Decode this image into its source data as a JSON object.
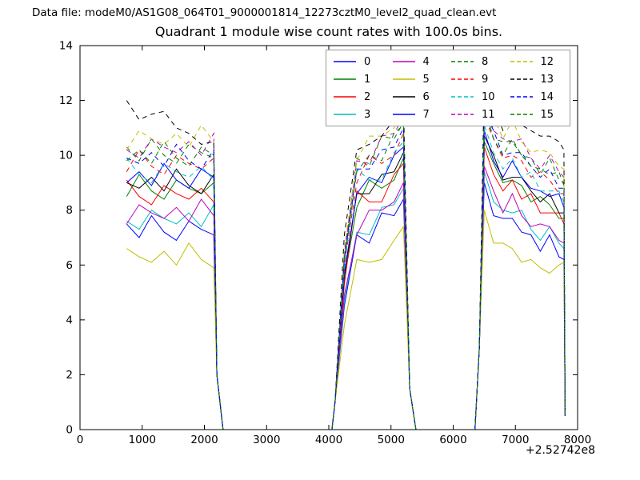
{
  "header": {
    "data_file_label": "Data file: modeM0/AS1G08_064T01_9000001814_12273cztM0_level2_quad_clean.evt"
  },
  "chart_data": {
    "type": "line",
    "title": "Quadrant 1 module wise count rates with 100.0s bins.",
    "xlabel": "",
    "ylabel": "",
    "x_offset_label": "+2.52742e8",
    "xlim": [
      0,
      8000
    ],
    "ylim": [
      0,
      14
    ],
    "xticks": [
      0,
      1000,
      2000,
      3000,
      4000,
      5000,
      6000,
      7000,
      8000
    ],
    "yticks": [
      0,
      2,
      4,
      6,
      8,
      10,
      12,
      14
    ],
    "grid": false,
    "legend": {
      "position": "upper center-right",
      "columns": 4
    },
    "x": [
      750,
      950,
      1150,
      1350,
      1550,
      1750,
      1950,
      2150,
      2200,
      2300,
      4050,
      4100,
      4250,
      4450,
      4650,
      4850,
      5050,
      5200,
      5300,
      5400,
      6350,
      6420,
      6500,
      6650,
      6800,
      6950,
      7100,
      7250,
      7400,
      7550,
      7700,
      7780,
      7800
    ],
    "series": [
      {
        "name": "0",
        "color": "#0000ff",
        "dash": false,
        "values": [
          7.5,
          7.0,
          7.8,
          7.2,
          6.9,
          7.6,
          7.3,
          7.1,
          2.0,
          0,
          0,
          1.0,
          4.5,
          7.1,
          6.8,
          7.9,
          7.8,
          8.4,
          1.5,
          0,
          0,
          3.0,
          9.0,
          7.8,
          7.7,
          7.7,
          7.2,
          7.1,
          6.5,
          7.1,
          6.3,
          6.2,
          0.5
        ]
      },
      {
        "name": "1",
        "color": "#008000",
        "dash": false,
        "values": [
          8.5,
          9.3,
          8.7,
          8.4,
          9.1,
          8.8,
          8.6,
          9.0,
          2.0,
          0,
          0,
          1.0,
          5.5,
          8.1,
          9.1,
          8.8,
          9.1,
          9.9,
          1.5,
          0,
          0,
          3.0,
          10.5,
          9.7,
          9.0,
          9.1,
          8.9,
          8.3,
          8.5,
          8.2,
          7.7,
          7.7,
          0.5
        ]
      },
      {
        "name": "2",
        "color": "#ff0000",
        "dash": false,
        "values": [
          9.1,
          8.5,
          8.2,
          8.9,
          8.6,
          8.4,
          8.8,
          8.3,
          2.0,
          0,
          0,
          1.0,
          5.3,
          8.7,
          8.3,
          8.3,
          9.3,
          9.7,
          1.5,
          0,
          0,
          3.0,
          10.3,
          9.3,
          8.7,
          9.1,
          8.4,
          8.6,
          7.9,
          7.9,
          7.9,
          7.5,
          0.5
        ]
      },
      {
        "name": "3",
        "color": "#00bfbf",
        "dash": false,
        "values": [
          7.6,
          7.3,
          8.0,
          7.7,
          7.5,
          7.9,
          7.4,
          8.2,
          2.0,
          0,
          0,
          1.0,
          4.7,
          7.2,
          7.1,
          8.1,
          8.2,
          8.8,
          1.5,
          0,
          0,
          3.0,
          9.4,
          8.3,
          8.0,
          7.9,
          8.0,
          7.3,
          6.9,
          7.4,
          6.8,
          6.6,
          0.5
        ]
      },
      {
        "name": "4",
        "color": "#bf00bf",
        "dash": false,
        "values": [
          7.5,
          8.2,
          7.9,
          7.7,
          8.1,
          7.6,
          8.4,
          7.8,
          2.0,
          0,
          0,
          1.0,
          4.9,
          7.1,
          8.0,
          8.0,
          8.3,
          9.0,
          1.5,
          0,
          0,
          3.0,
          9.6,
          8.7,
          7.9,
          8.6,
          7.8,
          7.4,
          7.5,
          7.4,
          6.9,
          6.8,
          0.5
        ]
      },
      {
        "name": "5",
        "color": "#bfbf00",
        "dash": false,
        "values": [
          6.6,
          6.3,
          6.1,
          6.5,
          6.0,
          6.8,
          6.2,
          5.9,
          2.0,
          0,
          0,
          1.0,
          3.8,
          6.2,
          6.1,
          6.2,
          6.9,
          7.4,
          1.5,
          0,
          0,
          3.0,
          8.0,
          6.8,
          6.8,
          6.6,
          6.1,
          6.2,
          5.9,
          5.7,
          6.0,
          6.1,
          0.5
        ]
      },
      {
        "name": "6",
        "color": "#000000",
        "dash": false,
        "values": [
          9.0,
          8.8,
          9.2,
          8.7,
          9.5,
          8.9,
          8.6,
          9.3,
          2.0,
          0,
          0,
          1.0,
          5.6,
          8.6,
          8.6,
          9.3,
          9.4,
          10.1,
          1.5,
          0,
          0,
          3.0,
          10.7,
          10.0,
          9.1,
          9.2,
          9.2,
          8.7,
          8.3,
          8.6,
          7.9,
          7.9,
          0.5
        ]
      },
      {
        "name": "7",
        "color": "#0000ff",
        "dash": false,
        "values": [
          9.0,
          9.4,
          8.9,
          9.7,
          9.1,
          8.8,
          9.5,
          9.2,
          2.0,
          0,
          0,
          1.0,
          5.7,
          8.6,
          9.2,
          9.0,
          10.0,
          10.3,
          1.5,
          0,
          0,
          3.0,
          10.9,
          9.8,
          9.2,
          9.8,
          9.2,
          8.8,
          8.7,
          8.5,
          8.6,
          8.1,
          0.5
        ]
      },
      {
        "name": "8",
        "color": "#008000",
        "dash": true,
        "values": [
          10.3,
          9.8,
          10.6,
          10.0,
          9.7,
          10.4,
          10.1,
          9.9,
          2.0,
          0,
          0,
          1.0,
          6.3,
          9.9,
          9.6,
          10.7,
          10.6,
          11.2,
          1.5,
          0,
          0,
          3.0,
          11.8,
          10.6,
          10.5,
          10.5,
          10.0,
          9.9,
          9.3,
          9.9,
          9.1,
          9.0,
          0.5
        ]
      },
      {
        "name": "9",
        "color": "#ff0000",
        "dash": true,
        "values": [
          9.4,
          10.2,
          9.6,
          9.3,
          10.0,
          9.7,
          9.5,
          9.9,
          2.0,
          0,
          0,
          1.0,
          6.0,
          9.0,
          10.0,
          9.7,
          10.0,
          10.8,
          1.5,
          0,
          0,
          3.0,
          11.4,
          10.6,
          9.9,
          10.0,
          9.8,
          9.2,
          9.4,
          9.1,
          8.6,
          8.6,
          0.5
        ]
      },
      {
        "name": "10",
        "color": "#00bfbf",
        "dash": true,
        "values": [
          9.9,
          9.3,
          9.0,
          9.7,
          9.4,
          9.2,
          9.6,
          9.1,
          2.0,
          0,
          0,
          1.0,
          5.9,
          9.5,
          9.1,
          9.1,
          10.1,
          10.5,
          1.5,
          0,
          0,
          3.0,
          11.1,
          10.1,
          9.5,
          9.9,
          9.2,
          9.4,
          8.7,
          8.7,
          8.7,
          8.3,
          0.5
        ]
      },
      {
        "name": "11",
        "color": "#bf00bf",
        "dash": true,
        "values": [
          10.2,
          9.9,
          10.6,
          10.3,
          10.1,
          10.5,
          10.0,
          10.8,
          2.0,
          0,
          0,
          1.0,
          6.4,
          9.8,
          9.7,
          10.7,
          10.8,
          11.4,
          1.5,
          0,
          0,
          3.0,
          12.0,
          10.9,
          10.6,
          10.5,
          10.6,
          9.9,
          9.5,
          10.0,
          9.4,
          9.2,
          0.5
        ]
      },
      {
        "name": "12",
        "color": "#bfbf00",
        "dash": true,
        "values": [
          10.2,
          10.9,
          10.6,
          10.4,
          10.8,
          10.3,
          11.1,
          10.5,
          2.0,
          0,
          0,
          1.0,
          6.6,
          9.8,
          10.7,
          10.7,
          11.0,
          11.7,
          1.5,
          0,
          0,
          3.0,
          12.3,
          11.4,
          10.6,
          11.3,
          10.5,
          10.1,
          10.2,
          10.1,
          9.6,
          9.5,
          0.5
        ]
      },
      {
        "name": "13",
        "color": "#000000",
        "dash": true,
        "values": [
          12.0,
          11.3,
          11.5,
          11.6,
          11.0,
          10.8,
          10.4,
          10.5,
          2.0,
          0,
          0,
          1.0,
          7.1,
          10.2,
          10.4,
          10.7,
          11.3,
          12.0,
          1.5,
          0,
          0,
          3.0,
          13.0,
          11.8,
          10.9,
          11.6,
          11.1,
          10.9,
          10.7,
          10.7,
          10.5,
          10.2,
          0.5
        ]
      },
      {
        "name": "14",
        "color": "#0000ff",
        "dash": true,
        "values": [
          9.9,
          9.7,
          10.1,
          9.6,
          10.4,
          9.8,
          9.5,
          10.2,
          2.0,
          0,
          0,
          1.0,
          6.2,
          9.5,
          9.5,
          10.2,
          10.3,
          11.0,
          1.5,
          0,
          0,
          3.0,
          11.6,
          10.9,
          10.0,
          10.1,
          10.1,
          9.6,
          9.2,
          9.5,
          8.8,
          8.8,
          0.5
        ]
      },
      {
        "name": "15",
        "color": "#008000",
        "dash": true,
        "values": [
          9.8,
          10.2,
          9.7,
          10.5,
          9.9,
          9.6,
          10.3,
          10.0,
          2.0,
          0,
          0,
          1.0,
          6.2,
          9.4,
          10.0,
          9.8,
          10.8,
          11.1,
          1.5,
          0,
          0,
          3.0,
          11.7,
          10.6,
          10.0,
          10.6,
          10.0,
          9.6,
          9.5,
          9.3,
          9.4,
          8.9,
          0.5
        ]
      }
    ]
  }
}
